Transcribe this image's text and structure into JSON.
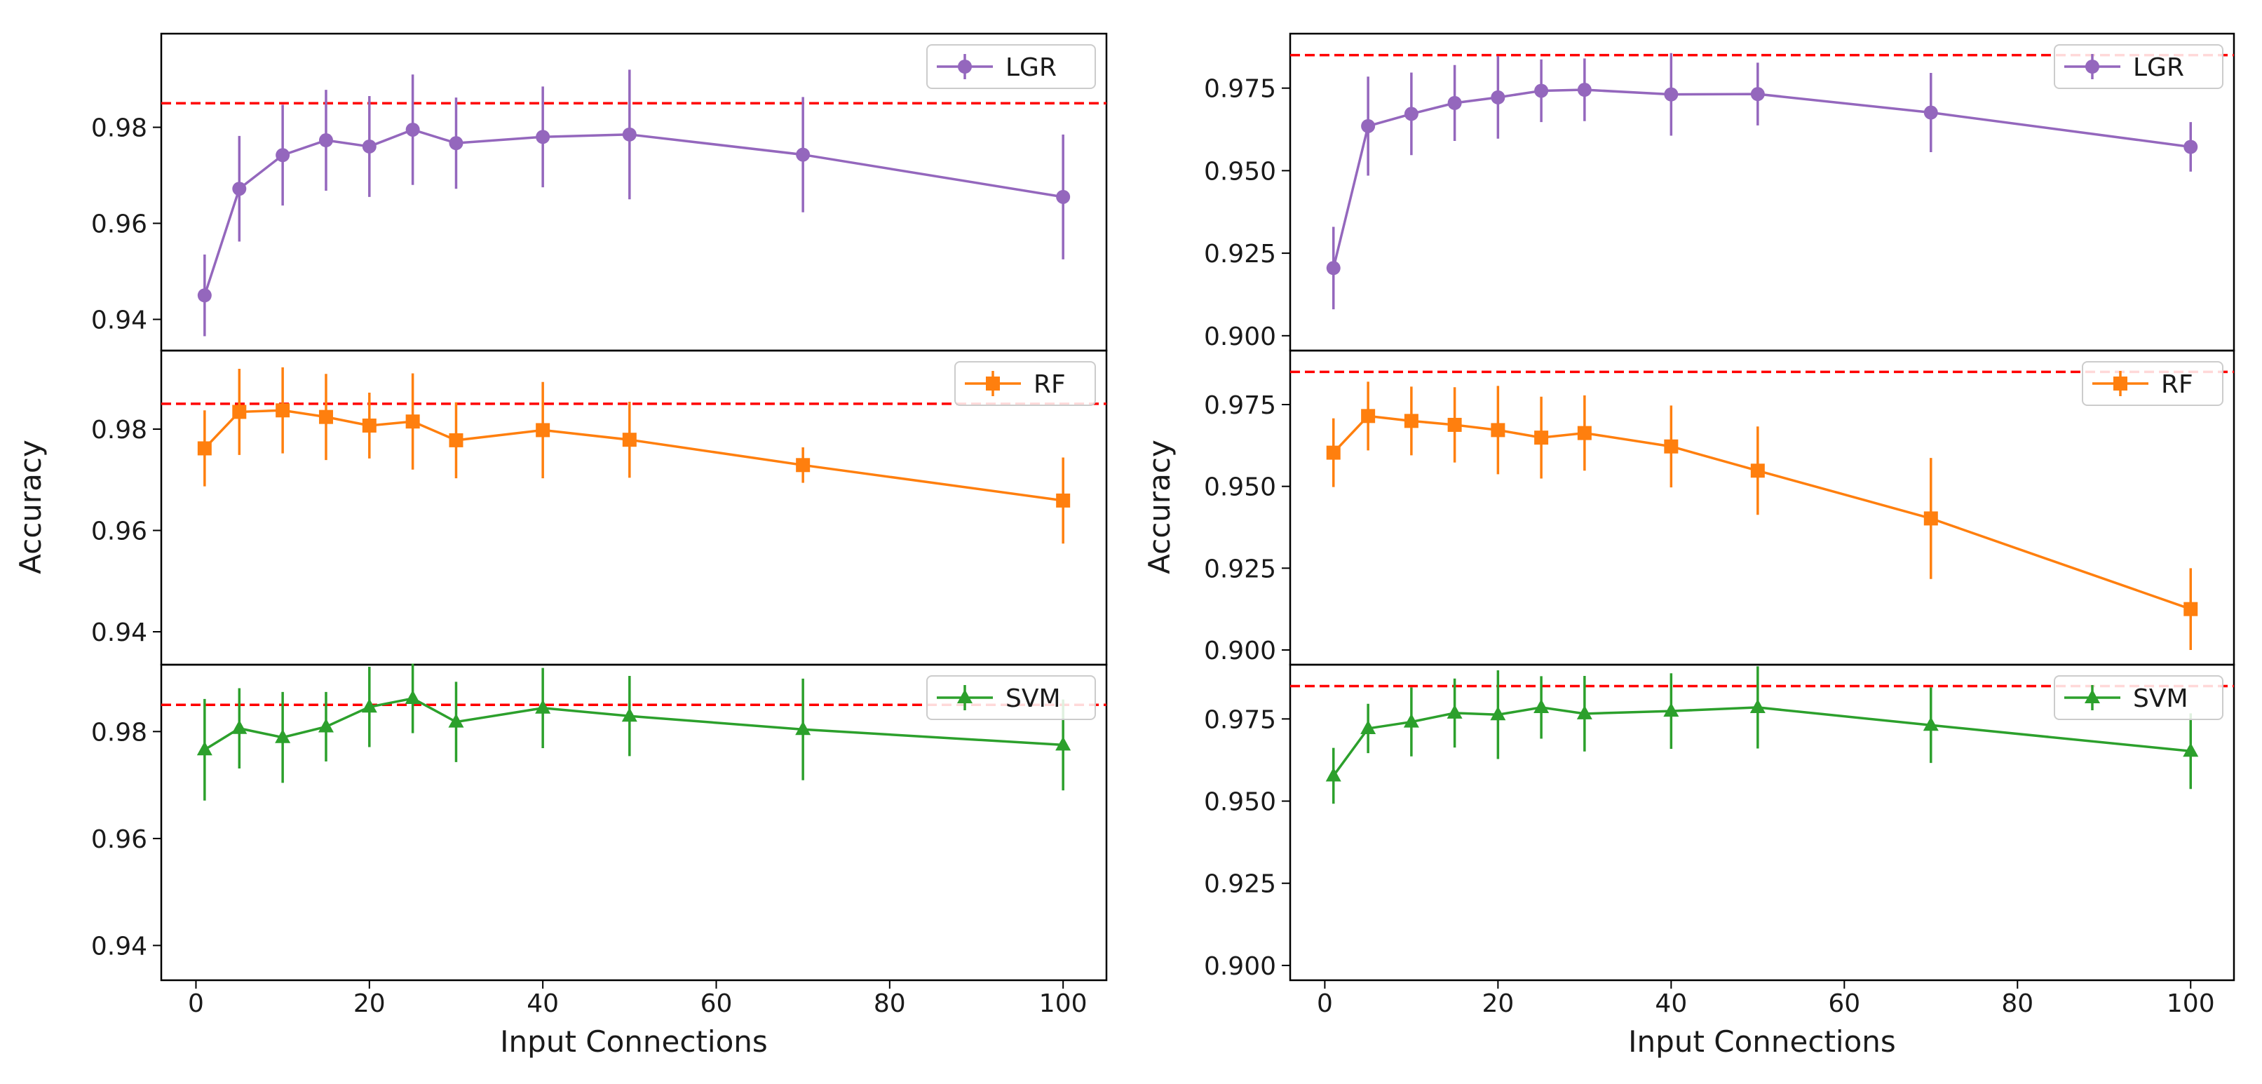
{
  "chart_data": [
    {
      "type": "line",
      "panel": "left",
      "xlabel": "Input Connections",
      "ylabel": "Accuracy",
      "xlim": [
        -4,
        105
      ],
      "xticks": [
        0,
        20,
        40,
        60,
        80,
        100
      ],
      "xtick_labels": [
        "0",
        "20",
        "40",
        "60",
        "80",
        "100"
      ],
      "x": [
        1,
        5,
        10,
        15,
        20,
        25,
        30,
        40,
        50,
        70,
        100
      ],
      "subplots": [
        {
          "name": "LGR",
          "marker": "circle",
          "color": "#9467bd",
          "ylim": [
            0.9335,
            0.9995
          ],
          "yticks": [
            0.94,
            0.96,
            0.98
          ],
          "ytick_labels": [
            "0.94",
            "0.96",
            "0.98"
          ],
          "reference_line": 0.985,
          "values": [
            0.945,
            0.9672,
            0.9742,
            0.9773,
            0.976,
            0.9795,
            0.9767,
            0.978,
            0.9785,
            0.9743,
            0.9655
          ],
          "errors": [
            0.0085,
            0.011,
            0.0105,
            0.0105,
            0.0105,
            0.0115,
            0.0095,
            0.0105,
            0.0135,
            0.012,
            0.013
          ]
        },
        {
          "name": "RF",
          "marker": "square",
          "color": "#ff7f0e",
          "ylim": [
            0.9335,
            0.9955
          ],
          "yticks": [
            0.94,
            0.96,
            0.98
          ],
          "ytick_labels": [
            "0.94",
            "0.96",
            "0.98"
          ],
          "reference_line": 0.985,
          "values": [
            0.9762,
            0.9834,
            0.9837,
            0.9824,
            0.9807,
            0.9815,
            0.9778,
            0.9798,
            0.9779,
            0.9729,
            0.9659
          ],
          "errors": [
            0.0075,
            0.0085,
            0.0085,
            0.0085,
            0.0065,
            0.0095,
            0.0075,
            0.0095,
            0.0075,
            0.0035,
            0.0085
          ]
        },
        {
          "name": "SVM",
          "marker": "triangle",
          "color": "#2ca02c",
          "ylim": [
            0.9335,
            0.9925
          ],
          "yticks": [
            0.94,
            0.96,
            0.98
          ],
          "ytick_labels": [
            "0.94",
            "0.96",
            "0.98"
          ],
          "reference_line": 0.985,
          "values": [
            0.9766,
            0.9806,
            0.9789,
            0.9809,
            0.9846,
            0.9862,
            0.9818,
            0.9844,
            0.9829,
            0.9804,
            0.9775
          ],
          "errors": [
            0.0095,
            0.0075,
            0.0085,
            0.0065,
            0.0075,
            0.0065,
            0.0075,
            0.0075,
            0.0075,
            0.0095,
            0.0085
          ]
        }
      ]
    },
    {
      "type": "line",
      "panel": "right",
      "xlabel": "Input Connections",
      "ylabel": "Accuracy",
      "xlim": [
        -4,
        105
      ],
      "xticks": [
        0,
        20,
        40,
        60,
        80,
        100
      ],
      "xtick_labels": [
        "0",
        "20",
        "40",
        "60",
        "80",
        "100"
      ],
      "x": [
        1,
        5,
        10,
        15,
        20,
        25,
        30,
        40,
        50,
        70,
        100
      ],
      "subplots": [
        {
          "name": "LGR",
          "marker": "circle",
          "color": "#9467bd",
          "ylim": [
            0.8955,
            0.9915
          ],
          "yticks": [
            0.9,
            0.925,
            0.95,
            0.975
          ],
          "ytick_labels": [
            "0.900",
            "0.925",
            "0.950",
            "0.975"
          ],
          "reference_line": 0.985,
          "values": [
            0.9205,
            0.9635,
            0.9672,
            0.9705,
            0.9722,
            0.9742,
            0.9745,
            0.9731,
            0.9732,
            0.9676,
            0.9572
          ],
          "errors": [
            0.0125,
            0.015,
            0.0125,
            0.0115,
            0.0125,
            0.0095,
            0.0095,
            0.0125,
            0.0095,
            0.012,
            0.0075
          ]
        },
        {
          "name": "RF",
          "marker": "square",
          "color": "#ff7f0e",
          "ylim": [
            0.8955,
            0.9915
          ],
          "yticks": [
            0.9,
            0.925,
            0.95,
            0.975
          ],
          "ytick_labels": [
            "0.900",
            "0.925",
            "0.950",
            "0.975"
          ],
          "reference_line": 0.985,
          "values": [
            0.9603,
            0.9715,
            0.97,
            0.9688,
            0.9672,
            0.9649,
            0.9663,
            0.9622,
            0.9548,
            0.9402,
            0.9125
          ],
          "errors": [
            0.0105,
            0.0105,
            0.0105,
            0.0115,
            0.0135,
            0.0125,
            0.0115,
            0.0125,
            0.0135,
            0.0185,
            0.0125
          ]
        },
        {
          "name": "SVM",
          "marker": "triangle",
          "color": "#2ca02c",
          "ylim": [
            0.8955,
            0.9915
          ],
          "yticks": [
            0.9,
            0.925,
            0.95,
            0.975
          ],
          "ytick_labels": [
            "0.900",
            "0.925",
            "0.950",
            "0.975"
          ],
          "reference_line": 0.985,
          "values": [
            0.9577,
            0.9721,
            0.9741,
            0.9768,
            0.9763,
            0.9785,
            0.9766,
            0.9774,
            0.9785,
            0.9731,
            0.9652
          ],
          "errors": [
            0.0085,
            0.0075,
            0.0105,
            0.0105,
            0.0135,
            0.0095,
            0.0115,
            0.0115,
            0.0125,
            0.0115,
            0.0115
          ]
        }
      ]
    }
  ],
  "colors": {
    "reference_line": "#ff0000",
    "axes": "#000000"
  }
}
